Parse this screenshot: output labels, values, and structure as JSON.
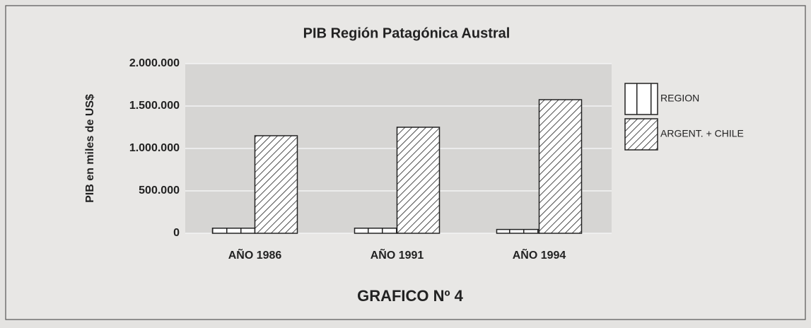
{
  "chart_data": {
    "type": "bar",
    "title": "PIB Región Patagónica Austral",
    "ylabel": "PIB en miles de US$",
    "caption": "GRAFICO Nº 4",
    "categories": [
      "AÑO 1986",
      "AÑO 1991",
      "AÑO 1994"
    ],
    "series": [
      {
        "name": "REGION",
        "color": "#ffffff",
        "pattern": "vertical",
        "values": [
          60000,
          60000,
          45000
        ]
      },
      {
        "name": "ARGENT. + CHILE",
        "color": "#ffffff",
        "pattern": "diagonal",
        "values": [
          1150000,
          1250000,
          1575000
        ]
      }
    ],
    "ylim": [
      0,
      2000000
    ],
    "yticks": [
      0,
      {
        "value": 500000,
        "label": "500.000"
      },
      {
        "value": 1000000,
        "label": "1.000.000"
      },
      {
        "value": 1500000,
        "label": "1.500.000"
      },
      {
        "value": 2000000,
        "label": "2.000.000"
      }
    ],
    "grid": true,
    "legend": "right"
  }
}
